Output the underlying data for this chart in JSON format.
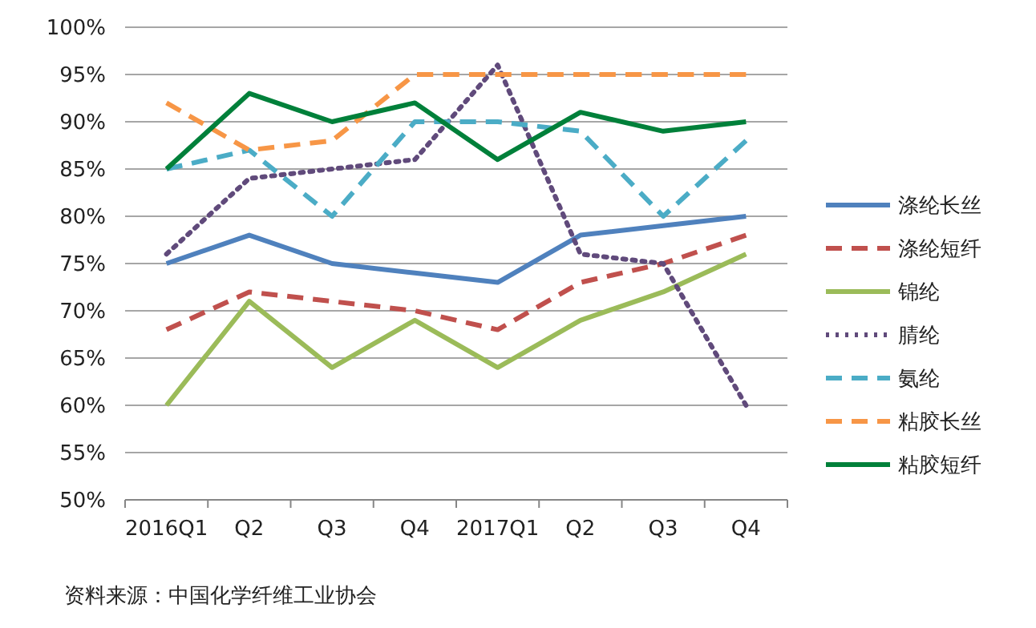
{
  "chart_data": {
    "type": "line",
    "categories": [
      "2016Q1",
      "Q2",
      "Q3",
      "Q4",
      "2017Q1",
      "Q2",
      "Q3",
      "Q4"
    ],
    "series": [
      {
        "name": "涤纶长丝",
        "color": "#4f81bd",
        "line_style": "solid",
        "values": [
          75,
          78,
          75,
          74,
          73,
          78,
          79,
          80
        ]
      },
      {
        "name": "涤纶短纤",
        "color": "#c0504d",
        "line_style": "dashed",
        "values": [
          68,
          72,
          71,
          70,
          68,
          73,
          75,
          78
        ]
      },
      {
        "name": "锦纶",
        "color": "#9bbb59",
        "line_style": "solid",
        "values": [
          60,
          71,
          64,
          69,
          64,
          69,
          72,
          76
        ]
      },
      {
        "name": "腈纶",
        "color": "#604a7b",
        "line_style": "dotted",
        "values": [
          76,
          84,
          85,
          86,
          96,
          76,
          75,
          60
        ]
      },
      {
        "name": "氨纶",
        "color": "#4bacc6",
        "line_style": "dashed",
        "values": [
          85,
          87,
          80,
          90,
          90,
          89,
          80,
          88
        ]
      },
      {
        "name": "粘胶长丝",
        "color": "#f79646",
        "line_style": "dashed",
        "values": [
          92,
          87,
          88,
          95,
          95,
          95,
          95,
          95
        ]
      },
      {
        "name": "粘胶短纤",
        "color": "#00803a",
        "line_style": "solid",
        "values": [
          85,
          93,
          90,
          92,
          86,
          91,
          89,
          90
        ]
      }
    ],
    "ylim": [
      50,
      100
    ],
    "yticks": [
      {
        "value": 50,
        "label": "50%"
      },
      {
        "value": 55,
        "label": "55%"
      },
      {
        "value": 60,
        "label": "60%"
      },
      {
        "value": 65,
        "label": "65%"
      },
      {
        "value": 70,
        "label": "70%"
      },
      {
        "value": 75,
        "label": "75%"
      },
      {
        "value": 80,
        "label": "80%"
      },
      {
        "value": 85,
        "label": "85%"
      },
      {
        "value": 90,
        "label": "90%"
      },
      {
        "value": 95,
        "label": "95%"
      },
      {
        "value": 100,
        "label": "100%"
      }
    ],
    "grid": "y",
    "legend": "right",
    "marker": "none",
    "annotations": [
      "资料来源：中国化学纤维工业协会"
    ]
  }
}
